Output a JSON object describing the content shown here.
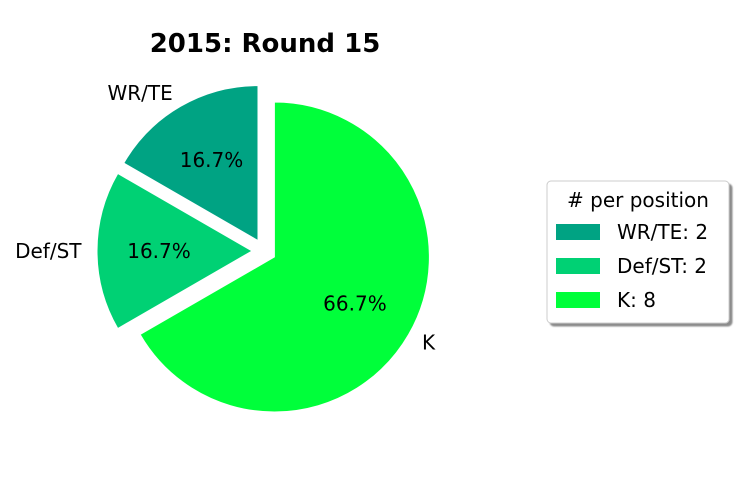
{
  "chart_data": {
    "type": "pie",
    "title": "2015: Round 15",
    "categories": [
      "WR/TE",
      "Def/ST",
      "K"
    ],
    "values": [
      2,
      2,
      8
    ],
    "percent_labels": [
      "16.7%",
      "16.7%",
      "66.7%"
    ],
    "colors": [
      "#00a383",
      "#00d174",
      "#00ff3a"
    ],
    "exploded": true,
    "legend": {
      "title": "# per position",
      "placement": "right",
      "entries": [
        "WR/TE: 2",
        "Def/ST: 2",
        "K: 8"
      ]
    }
  }
}
